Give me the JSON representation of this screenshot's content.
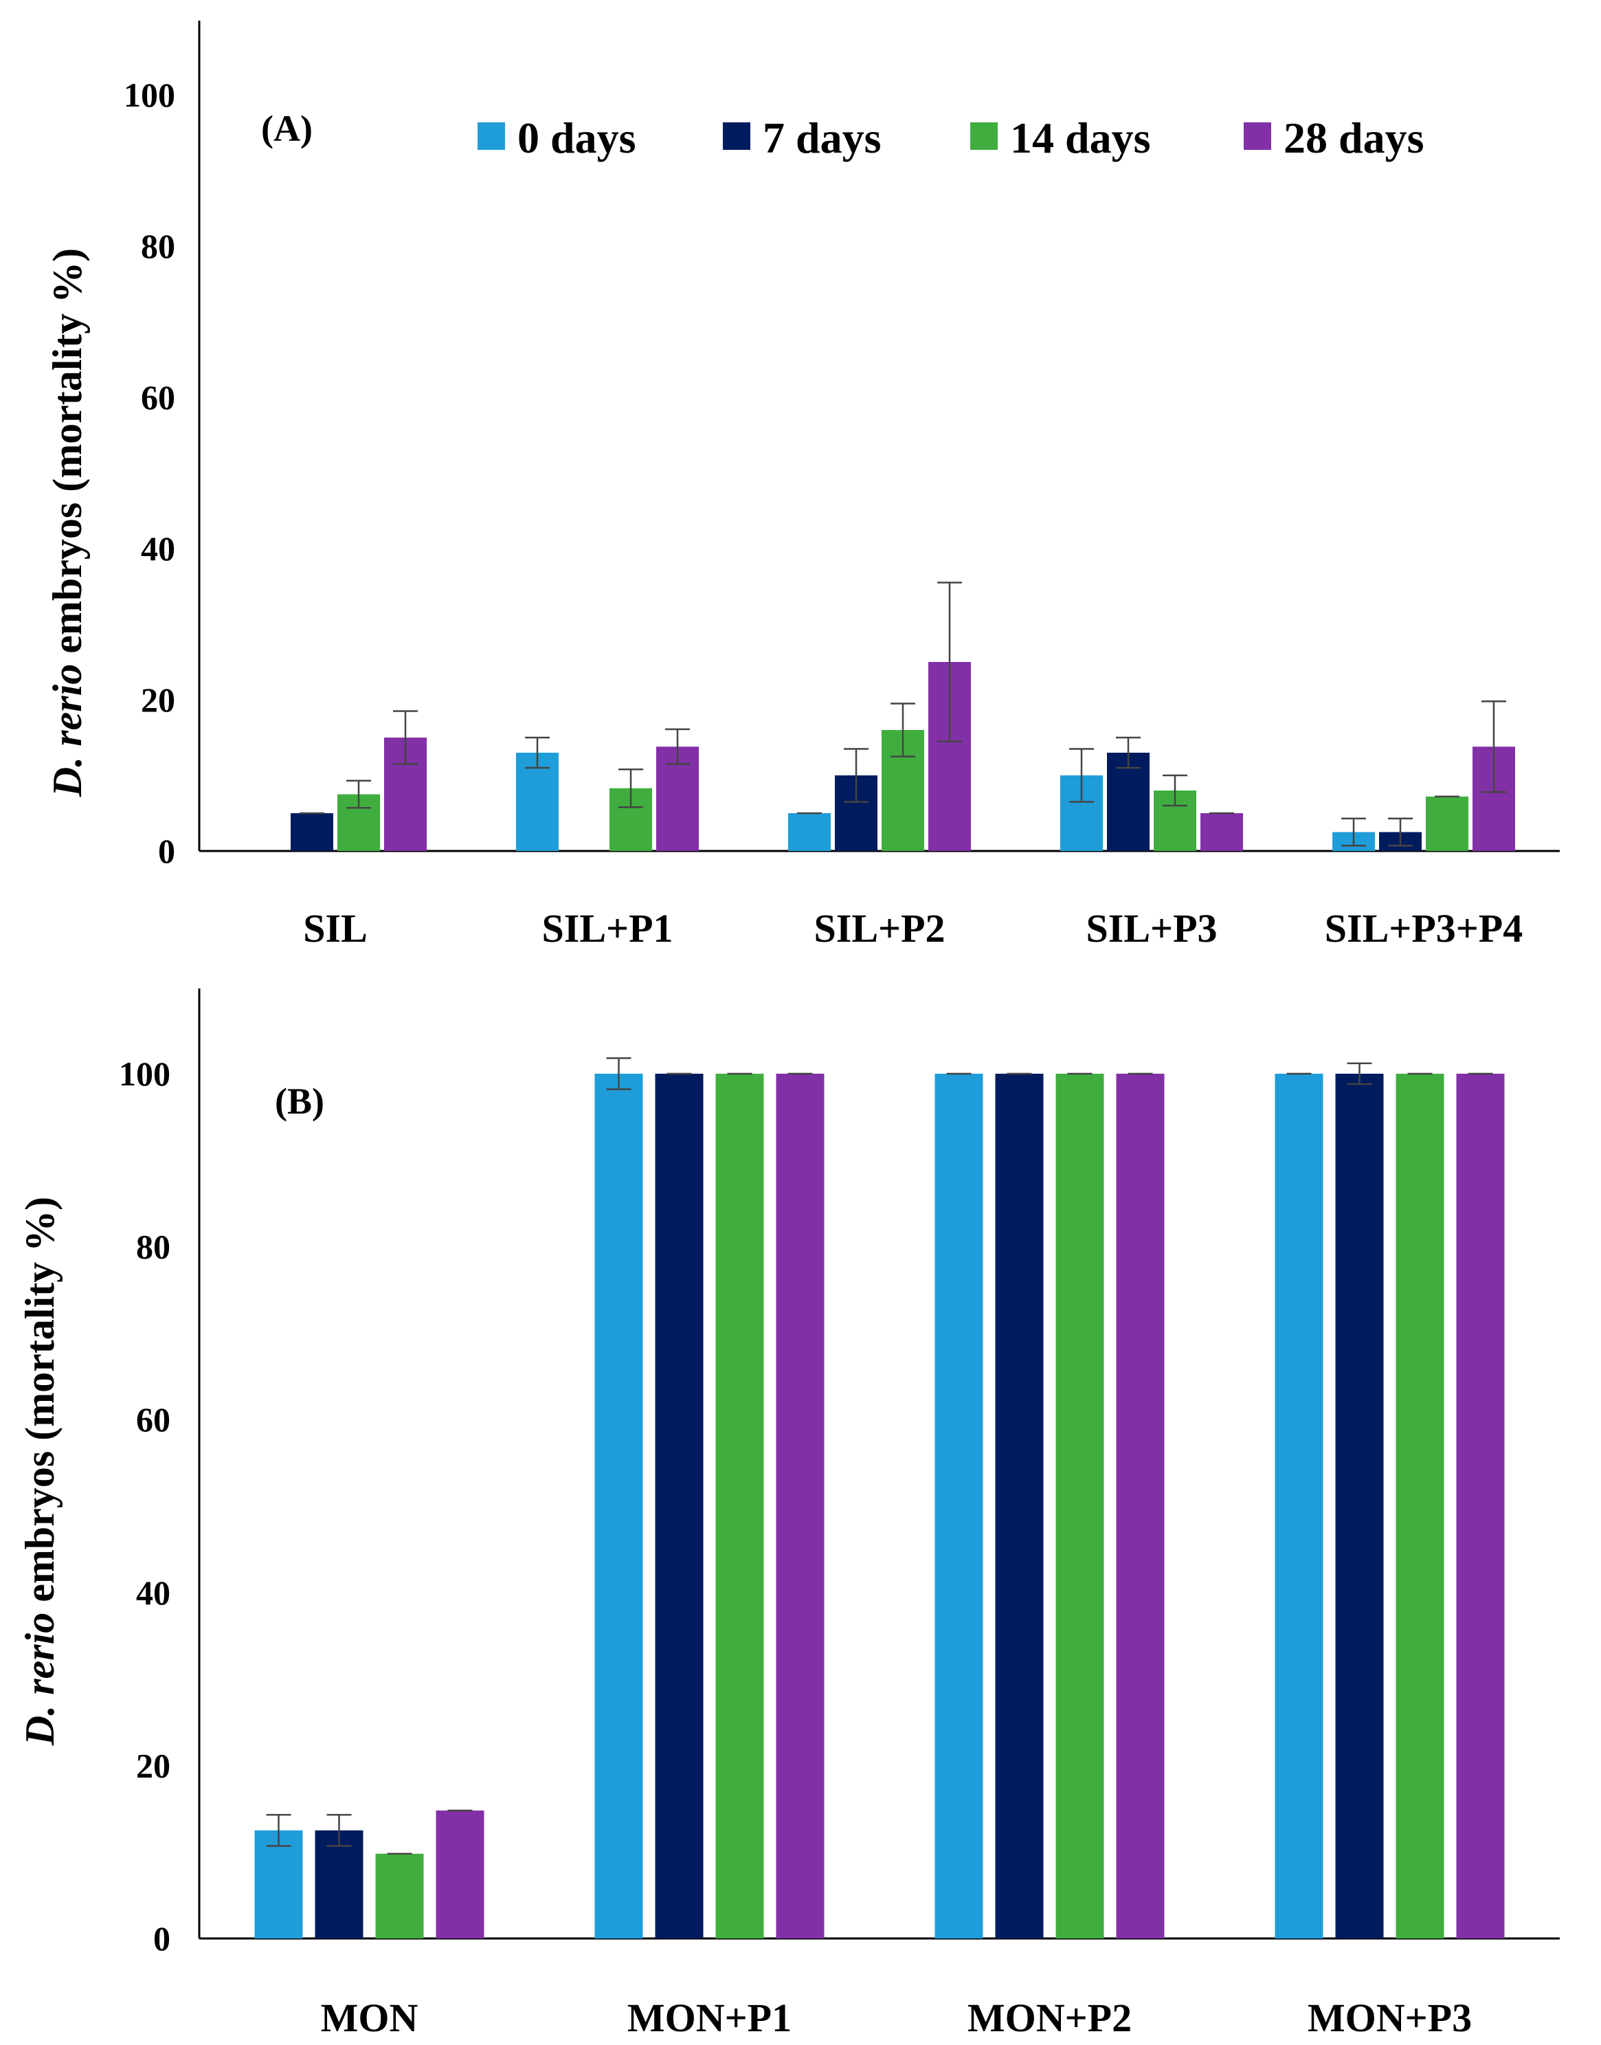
{
  "chart_data": [
    {
      "type": "bar",
      "panel_label": "(A)",
      "ylabel_italic": "D. rerio",
      "ylabel_rest": " embryos (mortality %)",
      "ylim": [
        0,
        110
      ],
      "yticks": [
        0,
        20,
        40,
        60,
        80,
        100
      ],
      "categories": [
        "SIL",
        "SIL+P1",
        "SIL+P2",
        "SIL+P3",
        "SIL+P3+P4"
      ],
      "legend_position": "top",
      "series": [
        {
          "name": "0 days",
          "color": "#1f9dd9",
          "values": [
            0,
            13,
            5,
            10,
            2.5
          ],
          "errors": [
            0,
            2,
            0,
            3.5,
            1.8
          ]
        },
        {
          "name": "7 days",
          "color": "#001b5e",
          "values": [
            5,
            0,
            10,
            13,
            2.5
          ],
          "errors": [
            0,
            0,
            3.5,
            2,
            1.8
          ]
        },
        {
          "name": "14 days",
          "color": "#40ae3e",
          "values": [
            7.5,
            8.3,
            16,
            8,
            7.2
          ],
          "errors": [
            1.8,
            2.5,
            3.5,
            2,
            0
          ]
        },
        {
          "name": "28 days",
          "color": "#8130a6",
          "values": [
            15,
            13.8,
            25,
            5,
            13.8
          ],
          "errors": [
            3.5,
            2.3,
            10.5,
            0,
            6
          ]
        }
      ]
    },
    {
      "type": "bar",
      "panel_label": "(B)",
      "ylabel_italic": "D. rerio",
      "ylabel_rest": " embryos (mortality %)",
      "ylim": [
        0,
        110
      ],
      "yticks": [
        0,
        20,
        40,
        60,
        80,
        100
      ],
      "categories": [
        "MON",
        "MON+P1",
        "MON+P2",
        "MON+P3"
      ],
      "series": [
        {
          "name": "0 days",
          "color": "#1f9dd9",
          "values": [
            12.5,
            100,
            100,
            100
          ],
          "errors": [
            1.8,
            1.8,
            0,
            0
          ]
        },
        {
          "name": "7 days",
          "color": "#001b5e",
          "values": [
            12.5,
            100,
            100,
            100
          ],
          "errors": [
            1.8,
            0,
            0,
            1.2
          ]
        },
        {
          "name": "14 days",
          "color": "#40ae3e",
          "values": [
            9.8,
            100,
            100,
            100
          ],
          "errors": [
            0,
            0,
            0,
            0
          ]
        },
        {
          "name": "28 days",
          "color": "#8130a6",
          "values": [
            14.8,
            100,
            100,
            100
          ],
          "errors": [
            0,
            0,
            0,
            0
          ]
        }
      ]
    }
  ]
}
